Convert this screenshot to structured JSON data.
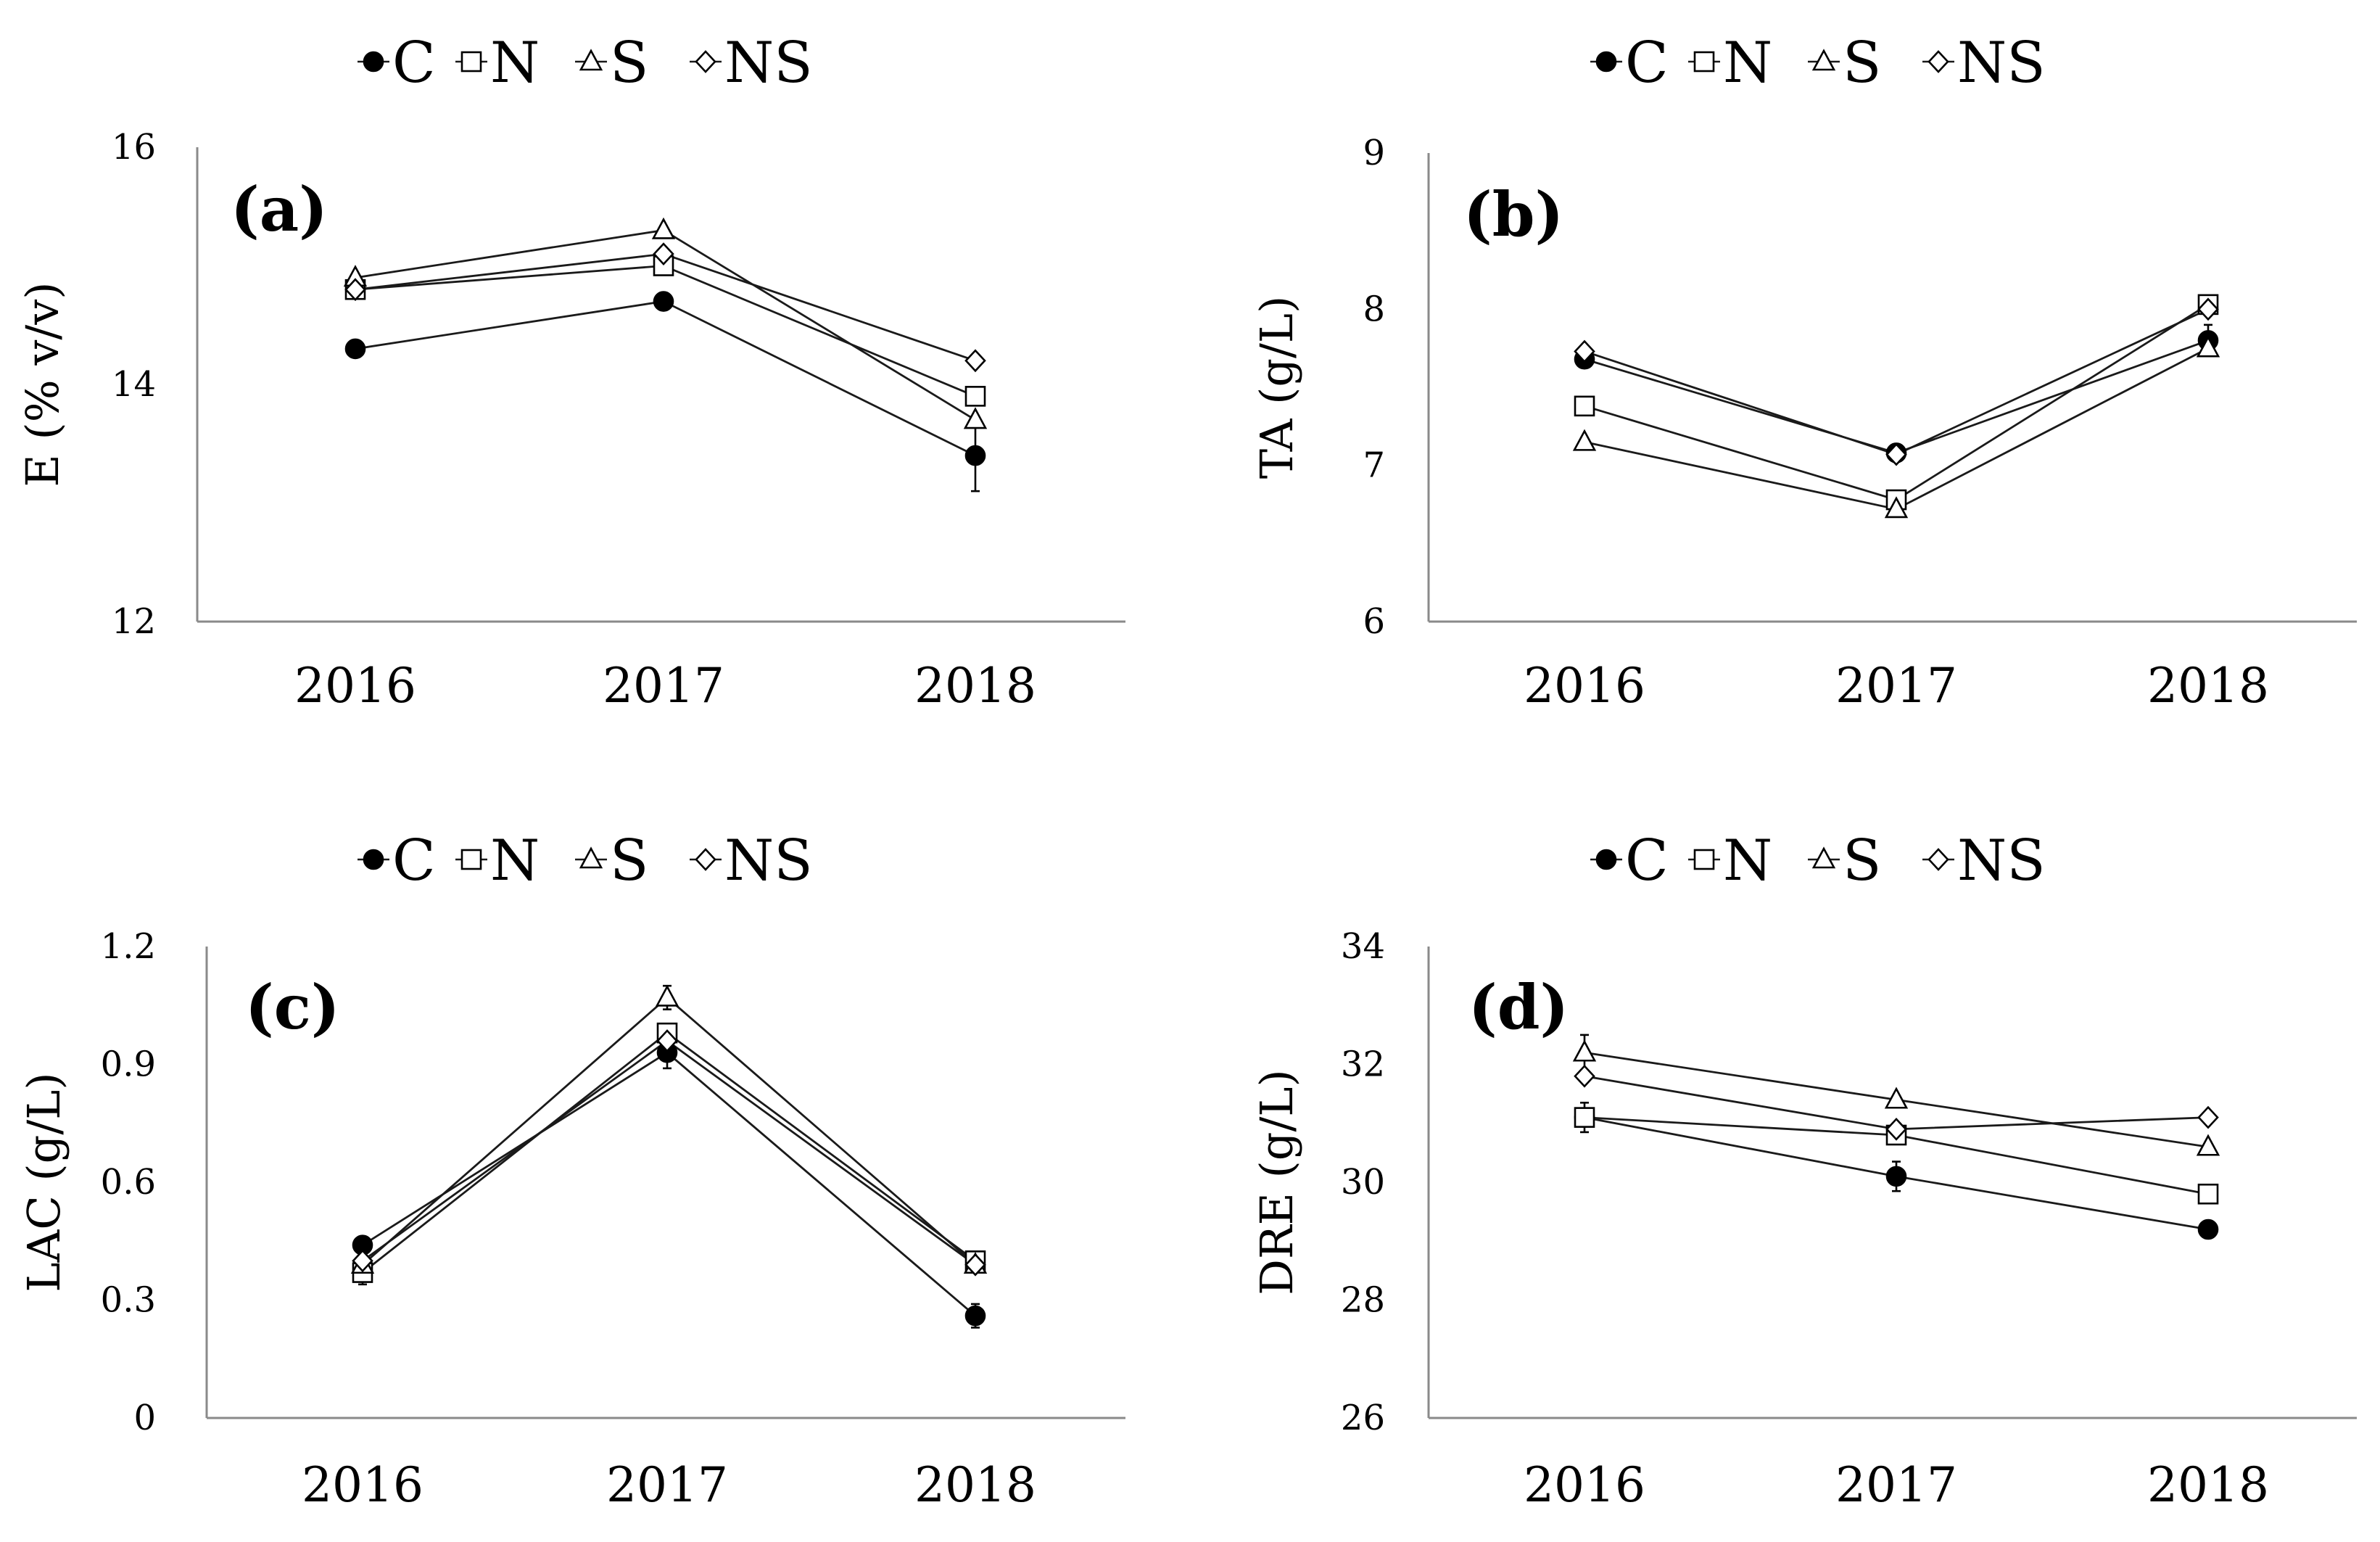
{
  "chart_data": [
    {
      "type": "line",
      "panel_label": "(a)",
      "ylabel": "E (% v/v)",
      "ylim": [
        12,
        16
      ],
      "yticks": [
        "12",
        "14",
        "16"
      ],
      "categories": [
        "2016",
        "2017",
        "2018"
      ],
      "legend": [
        "C",
        "N",
        "S",
        "NS"
      ],
      "legend_position": "top-center",
      "series": [
        {
          "name": "C",
          "marker": "filled-circle",
          "values": [
            14.3,
            14.7,
            13.4
          ],
          "errors": [
            0,
            0,
            0.3
          ]
        },
        {
          "name": "N",
          "marker": "open-square",
          "values": [
            14.8,
            15.0,
            13.9
          ],
          "errors": [
            0,
            0,
            0
          ]
        },
        {
          "name": "S",
          "marker": "open-triangle",
          "values": [
            14.9,
            15.3,
            13.7
          ],
          "errors": [
            0,
            0,
            0
          ]
        },
        {
          "name": "NS",
          "marker": "open-diamond",
          "values": [
            14.8,
            15.1,
            14.2
          ],
          "errors": [
            0,
            0,
            0
          ]
        }
      ]
    },
    {
      "type": "line",
      "panel_label": "(b)",
      "ylabel": "TA (g/L)",
      "ylim": [
        6,
        9
      ],
      "yticks": [
        "6",
        "7",
        "8",
        "9"
      ],
      "categories": [
        "2016",
        "2017",
        "2018"
      ],
      "legend": [
        "C",
        "N",
        "S",
        "NS"
      ],
      "legend_position": "top-center",
      "series": [
        {
          "name": "C",
          "marker": "filled-circle",
          "values": [
            7.68,
            7.08,
            7.8
          ],
          "errors": [
            0,
            0,
            0.1
          ]
        },
        {
          "name": "N",
          "marker": "open-square",
          "values": [
            7.38,
            6.78,
            8.03
          ],
          "errors": [
            0,
            0,
            0
          ]
        },
        {
          "name": "S",
          "marker": "open-triangle",
          "values": [
            7.15,
            6.72,
            7.75
          ],
          "errors": [
            0,
            0,
            0
          ]
        },
        {
          "name": "NS",
          "marker": "open-diamond",
          "values": [
            7.73,
            7.07,
            8.0
          ],
          "errors": [
            0,
            0,
            0
          ]
        }
      ]
    },
    {
      "type": "line",
      "panel_label": "(c)",
      "ylabel": "LAC (g/L)",
      "ylim": [
        0,
        1.2
      ],
      "yticks": [
        "0",
        "0.3",
        "0.6",
        "0.9",
        "1.2"
      ],
      "categories": [
        "2016",
        "2017",
        "2018"
      ],
      "legend": [
        "C",
        "N",
        "S",
        "NS"
      ],
      "legend_position": "top-center",
      "series": [
        {
          "name": "C",
          "marker": "filled-circle",
          "values": [
            0.44,
            0.93,
            0.26
          ],
          "errors": [
            0,
            0.04,
            0.03
          ]
        },
        {
          "name": "N",
          "marker": "open-square",
          "values": [
            0.37,
            0.98,
            0.4
          ],
          "errors": [
            0.03,
            0,
            0
          ]
        },
        {
          "name": "S",
          "marker": "open-triangle",
          "values": [
            0.39,
            1.07,
            0.39
          ],
          "errors": [
            0,
            0.03,
            0
          ]
        },
        {
          "name": "NS",
          "marker": "open-diamond",
          "values": [
            0.4,
            0.96,
            0.39
          ],
          "errors": [
            0,
            0,
            0
          ]
        }
      ]
    },
    {
      "type": "line",
      "panel_label": "(d)",
      "ylabel": "DRE (g/L)",
      "ylim": [
        26,
        34
      ],
      "yticks": [
        "26",
        "28",
        "30",
        "32",
        "34"
      ],
      "categories": [
        "2016",
        "2017",
        "2018"
      ],
      "legend": [
        "C",
        "N",
        "S",
        "NS"
      ],
      "legend_position": "top-center",
      "series": [
        {
          "name": "C",
          "marker": "filled-circle",
          "values": [
            31.1,
            30.1,
            29.2
          ],
          "errors": [
            0.25,
            0.25,
            0
          ]
        },
        {
          "name": "N",
          "marker": "open-square",
          "values": [
            31.1,
            30.8,
            29.8
          ],
          "errors": [
            0,
            0,
            0
          ]
        },
        {
          "name": "S",
          "marker": "open-triangle",
          "values": [
            32.2,
            31.4,
            30.6
          ],
          "errors": [
            0.3,
            0,
            0
          ]
        },
        {
          "name": "NS",
          "marker": "open-diamond",
          "values": [
            31.8,
            30.9,
            31.1
          ],
          "errors": [
            0,
            0,
            0
          ]
        }
      ]
    }
  ]
}
